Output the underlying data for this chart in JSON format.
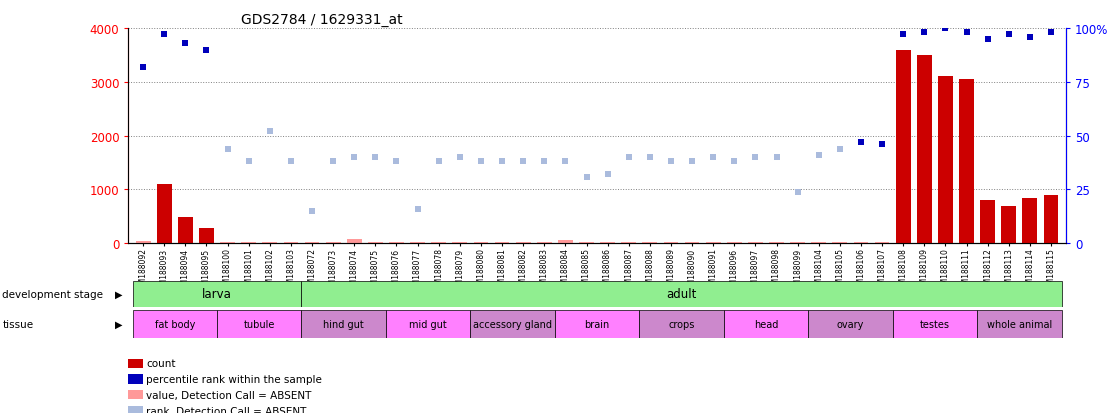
{
  "title": "GDS2784 / 1629331_at",
  "samples": [
    "GSM188092",
    "GSM188093",
    "GSM188094",
    "GSM188095",
    "GSM188100",
    "GSM188101",
    "GSM188102",
    "GSM188103",
    "GSM188072",
    "GSM188073",
    "GSM188074",
    "GSM188075",
    "GSM188076",
    "GSM188077",
    "GSM188078",
    "GSM188079",
    "GSM188080",
    "GSM188081",
    "GSM188082",
    "GSM188083",
    "GSM188084",
    "GSM188085",
    "GSM188086",
    "GSM188087",
    "GSM188088",
    "GSM188089",
    "GSM188090",
    "GSM188091",
    "GSM188096",
    "GSM188097",
    "GSM188098",
    "GSM188099",
    "GSM188104",
    "GSM188105",
    "GSM188106",
    "GSM188107",
    "GSM188108",
    "GSM188109",
    "GSM188110",
    "GSM188111",
    "GSM188112",
    "GSM188113",
    "GSM188114",
    "GSM188115"
  ],
  "count_values": [
    50,
    1100,
    480,
    280,
    20,
    15,
    20,
    15,
    15,
    15,
    80,
    15,
    15,
    15,
    15,
    15,
    15,
    15,
    15,
    15,
    60,
    15,
    15,
    15,
    15,
    15,
    15,
    15,
    15,
    15,
    15,
    15,
    20,
    20,
    20,
    20,
    3600,
    3500,
    3100,
    3050,
    800,
    700,
    850,
    900
  ],
  "count_present": [
    false,
    true,
    true,
    true,
    false,
    false,
    false,
    false,
    false,
    false,
    false,
    false,
    false,
    false,
    false,
    false,
    false,
    false,
    false,
    false,
    false,
    false,
    false,
    false,
    false,
    false,
    false,
    false,
    false,
    false,
    false,
    false,
    false,
    false,
    false,
    false,
    true,
    true,
    true,
    true,
    true,
    true,
    true,
    true
  ],
  "rank_values": [
    82,
    97,
    93,
    90,
    44,
    38,
    52,
    38,
    15,
    38,
    40,
    40,
    38,
    16,
    38,
    40,
    38,
    38,
    38,
    38,
    38,
    31,
    32,
    40,
    40,
    38,
    38,
    40,
    38,
    40,
    40,
    24,
    41,
    44,
    47,
    46,
    97,
    98,
    100,
    98,
    95,
    97,
    96,
    98
  ],
  "rank_present": [
    true,
    true,
    true,
    true,
    false,
    false,
    false,
    false,
    false,
    false,
    false,
    false,
    false,
    false,
    false,
    false,
    false,
    false,
    false,
    false,
    false,
    false,
    false,
    false,
    false,
    false,
    false,
    false,
    false,
    false,
    false,
    false,
    false,
    false,
    true,
    true,
    true,
    true,
    true,
    true,
    true,
    true,
    true,
    true
  ],
  "development_stages": [
    {
      "label": "larva",
      "start": 0,
      "end": 8
    },
    {
      "label": "adult",
      "start": 8,
      "end": 44
    }
  ],
  "tissues": [
    {
      "label": "fat body",
      "start": 0,
      "end": 4,
      "bright": true
    },
    {
      "label": "tubule",
      "start": 4,
      "end": 8,
      "bright": true
    },
    {
      "label": "hind gut",
      "start": 8,
      "end": 12,
      "bright": false
    },
    {
      "label": "mid gut",
      "start": 12,
      "end": 16,
      "bright": true
    },
    {
      "label": "accessory gland",
      "start": 16,
      "end": 20,
      "bright": false
    },
    {
      "label": "brain",
      "start": 20,
      "end": 24,
      "bright": true
    },
    {
      "label": "crops",
      "start": 24,
      "end": 28,
      "bright": false
    },
    {
      "label": "head",
      "start": 28,
      "end": 32,
      "bright": true
    },
    {
      "label": "ovary",
      "start": 32,
      "end": 36,
      "bright": false
    },
    {
      "label": "testes",
      "start": 36,
      "end": 40,
      "bright": true
    },
    {
      "label": "whole animal",
      "start": 40,
      "end": 44,
      "bright": false
    }
  ],
  "ylim_left": [
    0,
    4000
  ],
  "ylim_right": [
    0,
    100
  ],
  "yticks_left": [
    0,
    1000,
    2000,
    3000,
    4000
  ],
  "yticks_right": [
    0,
    25,
    50,
    75,
    100
  ],
  "count_color_present": "#CC0000",
  "count_color_absent": "#FF9999",
  "rank_color_present": "#0000BB",
  "rank_color_absent": "#AABBDD",
  "tissue_color_bright": "#FF80FF",
  "tissue_color_dim": "#CC88CC",
  "dev_stage_color": "#90EE90",
  "bar_width": 0.7,
  "marker_size": 5
}
